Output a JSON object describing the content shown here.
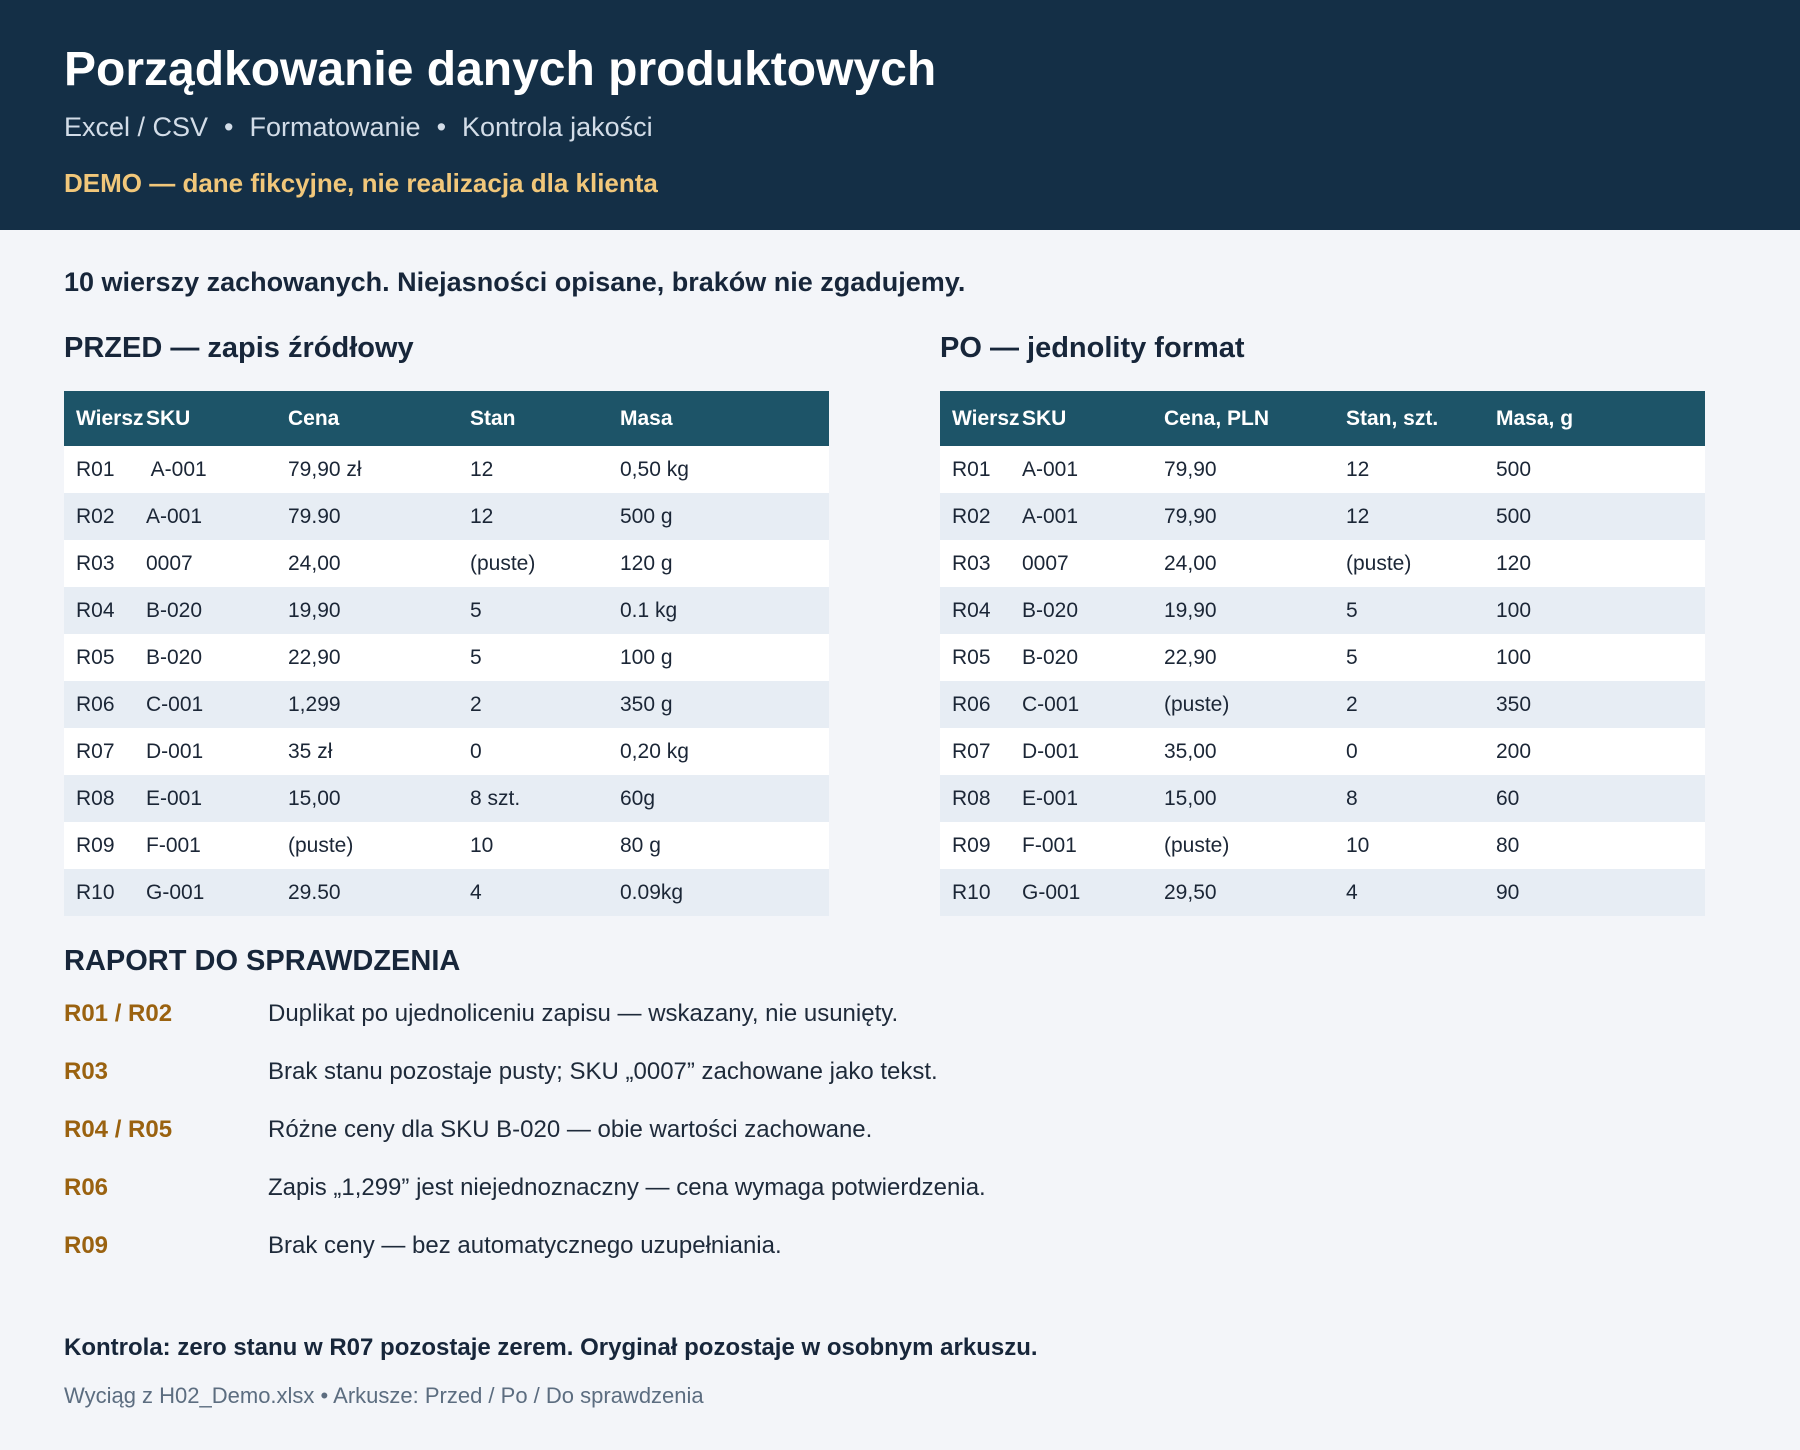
{
  "header": {
    "title": "Porządkowanie danych produktowych",
    "subtitle_items": [
      "Excel / CSV",
      "Formatowanie",
      "Kontrola jakości"
    ],
    "subtitle_separator": "•",
    "demo_note": "DEMO — dane fikcyjne, nie realizacja dla klienta"
  },
  "lead": "10 wierszy zachowanych. Niejasności opisane, braków nie zgadujemy.",
  "before": {
    "title": "PRZED — zapis źródłowy",
    "columns": [
      "Wiersz",
      "SKU",
      "Cena",
      "Stan",
      "Masa"
    ],
    "rows": [
      [
        "R01",
        " A-001",
        "79,90 zł",
        "12",
        "0,50 kg"
      ],
      [
        "R02",
        "A-001",
        "79.90",
        "12",
        "500 g"
      ],
      [
        "R03",
        "0007",
        "24,00",
        "(puste)",
        "120 g"
      ],
      [
        "R04",
        "B-020",
        "19,90",
        "5",
        "0.1 kg"
      ],
      [
        "R05",
        "B-020",
        "22,90",
        "5",
        "100 g"
      ],
      [
        "R06",
        "C-001",
        "1,299",
        "2",
        "350 g"
      ],
      [
        "R07",
        "D-001",
        "35 zł",
        "0",
        "0,20 kg"
      ],
      [
        "R08",
        "E-001",
        "15,00",
        "8 szt.",
        "60g"
      ],
      [
        "R09",
        "F-001",
        "(puste)",
        "10",
        "80 g"
      ],
      [
        "R10",
        "G-001",
        "29.50",
        "4",
        "0.09kg"
      ]
    ]
  },
  "after": {
    "title": "PO — jednolity format",
    "columns": [
      "Wiersz",
      "SKU",
      "Cena, PLN",
      "Stan, szt.",
      "Masa, g"
    ],
    "rows": [
      [
        "R01",
        "A-001",
        "79,90",
        "12",
        "500"
      ],
      [
        "R02",
        "A-001",
        "79,90",
        "12",
        "500"
      ],
      [
        "R03",
        "0007",
        "24,00",
        "(puste)",
        "120"
      ],
      [
        "R04",
        "B-020",
        "19,90",
        "5",
        "100"
      ],
      [
        "R05",
        "B-020",
        "22,90",
        "5",
        "100"
      ],
      [
        "R06",
        "C-001",
        "(puste)",
        "2",
        "350"
      ],
      [
        "R07",
        "D-001",
        "35,00",
        "0",
        "200"
      ],
      [
        "R08",
        "E-001",
        "15,00",
        "8",
        "60"
      ],
      [
        "R09",
        "F-001",
        "(puste)",
        "10",
        "80"
      ],
      [
        "R10",
        "G-001",
        "29,50",
        "4",
        "90"
      ]
    ]
  },
  "report": {
    "title": "RAPORT DO SPRAWDZENIA",
    "items": [
      {
        "key": "R01 / R02",
        "text": "Duplikat po ujednoliceniu zapisu — wskazany, nie usunięty."
      },
      {
        "key": "R03",
        "text": "Brak stanu pozostaje pusty; SKU „0007” zachowane jako tekst."
      },
      {
        "key": "R04 / R05",
        "text": "Różne ceny dla SKU B-020 — obie wartości zachowane."
      },
      {
        "key": "R06",
        "text": "Zapis „1,299” jest niejednoznaczny — cena wymaga potwierdzenia."
      },
      {
        "key": "R09",
        "text": "Brak ceny — bez automatycznego uzupełniania."
      }
    ]
  },
  "control": "Kontrola: zero stanu w R07 pozostaje zerem. Oryginał pozostaje w osobnym arkuszu.",
  "footer": "Wyciąg z H02_Demo.xlsx • Arkusze: Przed / Po / Do sprawdzenia",
  "colors": {
    "header_bg": "#142f46",
    "table_header_bg": "#1d5468",
    "demo_accent": "#f1c77a",
    "report_key": "#9a6210",
    "row_alt": "#e7edf4"
  }
}
